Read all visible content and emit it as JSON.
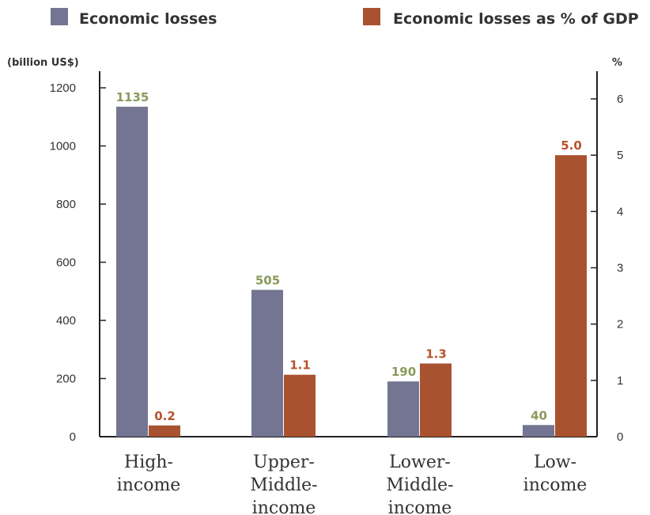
{
  "chart_data": {
    "type": "bar",
    "categories": [
      [
        "High-",
        "income"
      ],
      [
        "Upper-",
        "Middle-",
        "income"
      ],
      [
        "Lower-",
        "Middle-",
        "income"
      ],
      [
        "Low-",
        "income"
      ]
    ],
    "series": [
      {
        "name": "Economic losses",
        "axis": "left",
        "color": "#737592",
        "label_color": "#8a9a5b",
        "values": [
          1135,
          505,
          190,
          40
        ],
        "labels": [
          "1135",
          "505",
          "190",
          "40"
        ]
      },
      {
        "name": "Economic losses as % of GDP",
        "axis": "right",
        "color": "#a9522f",
        "label_color": "#b5532f",
        "values": [
          0.2,
          1.1,
          1.3,
          5.0
        ],
        "labels": [
          "0.2",
          "1.1",
          "1.3",
          "5.0"
        ]
      }
    ],
    "left_axis": {
      "unit_label": "(billion US$)",
      "ylim": [
        0,
        1200
      ],
      "ticks": [
        "0",
        "200",
        "400",
        "600",
        "800",
        "1000",
        "1200"
      ]
    },
    "right_axis": {
      "unit_label": "%",
      "ylim": [
        0,
        6
      ],
      "ticks": [
        "0",
        "1",
        "2",
        "3",
        "4",
        "5",
        "6"
      ]
    },
    "grid": false,
    "legend_position": "top"
  }
}
